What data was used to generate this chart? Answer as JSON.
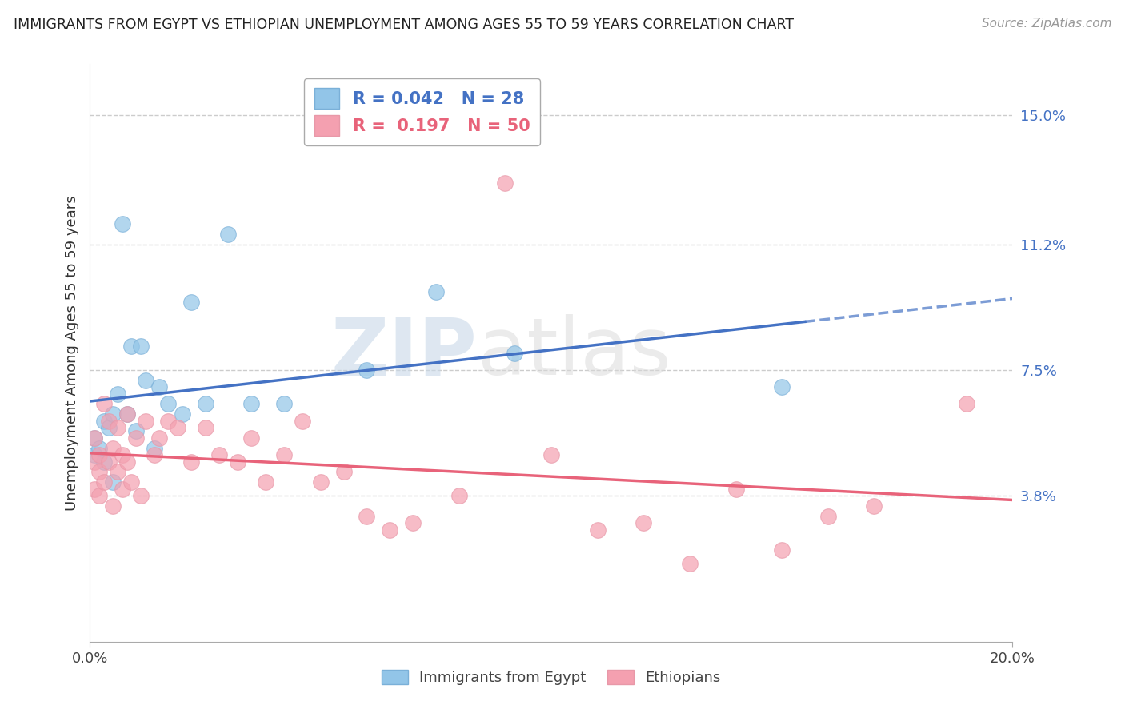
{
  "title": "IMMIGRANTS FROM EGYPT VS ETHIOPIAN UNEMPLOYMENT AMONG AGES 55 TO 59 YEARS CORRELATION CHART",
  "source": "Source: ZipAtlas.com",
  "ylabel": "Unemployment Among Ages 55 to 59 years",
  "xlim": [
    0.0,
    0.2
  ],
  "ylim": [
    -0.005,
    0.165
  ],
  "yticks": [
    0.038,
    0.075,
    0.112,
    0.15
  ],
  "ytick_labels": [
    "3.8%",
    "7.5%",
    "11.2%",
    "15.0%"
  ],
  "xticks": [
    0.0,
    0.2
  ],
  "xtick_labels": [
    "0.0%",
    "20.0%"
  ],
  "watermark_zip": "ZIP",
  "watermark_atlas": "atlas",
  "legend_R": [
    "0.042",
    "0.197"
  ],
  "legend_N": [
    "28",
    "50"
  ],
  "color_egypt": "#92c5e8",
  "color_ethiopia": "#f4a0b0",
  "color_egypt_line": "#4472c4",
  "color_ethiopia_line": "#e8637a",
  "color_ytick": "#4472c4",
  "background_color": "#ffffff",
  "grid_color": "#cccccc",
  "egypt_x": [
    0.001,
    0.001,
    0.002,
    0.003,
    0.003,
    0.004,
    0.005,
    0.005,
    0.006,
    0.007,
    0.008,
    0.009,
    0.01,
    0.011,
    0.012,
    0.014,
    0.015,
    0.017,
    0.02,
    0.022,
    0.025,
    0.03,
    0.035,
    0.042,
    0.06,
    0.075,
    0.092,
    0.15
  ],
  "egypt_y": [
    0.05,
    0.055,
    0.052,
    0.06,
    0.048,
    0.058,
    0.062,
    0.042,
    0.068,
    0.118,
    0.062,
    0.082,
    0.057,
    0.082,
    0.072,
    0.052,
    0.07,
    0.065,
    0.062,
    0.095,
    0.065,
    0.115,
    0.065,
    0.065,
    0.075,
    0.098,
    0.08,
    0.07
  ],
  "ethiopia_x": [
    0.001,
    0.001,
    0.001,
    0.002,
    0.002,
    0.002,
    0.003,
    0.003,
    0.004,
    0.004,
    0.005,
    0.005,
    0.006,
    0.006,
    0.007,
    0.007,
    0.008,
    0.008,
    0.009,
    0.01,
    0.011,
    0.012,
    0.014,
    0.015,
    0.017,
    0.019,
    0.022,
    0.025,
    0.028,
    0.032,
    0.035,
    0.038,
    0.042,
    0.046,
    0.05,
    0.055,
    0.06,
    0.065,
    0.07,
    0.08,
    0.09,
    0.1,
    0.11,
    0.12,
    0.13,
    0.14,
    0.15,
    0.16,
    0.17,
    0.19
  ],
  "ethiopia_y": [
    0.048,
    0.055,
    0.04,
    0.05,
    0.045,
    0.038,
    0.065,
    0.042,
    0.048,
    0.06,
    0.035,
    0.052,
    0.045,
    0.058,
    0.04,
    0.05,
    0.048,
    0.062,
    0.042,
    0.055,
    0.038,
    0.06,
    0.05,
    0.055,
    0.06,
    0.058,
    0.048,
    0.058,
    0.05,
    0.048,
    0.055,
    0.042,
    0.05,
    0.06,
    0.042,
    0.045,
    0.032,
    0.028,
    0.03,
    0.038,
    0.13,
    0.05,
    0.028,
    0.03,
    0.018,
    0.04,
    0.022,
    0.032,
    0.035,
    0.065
  ]
}
